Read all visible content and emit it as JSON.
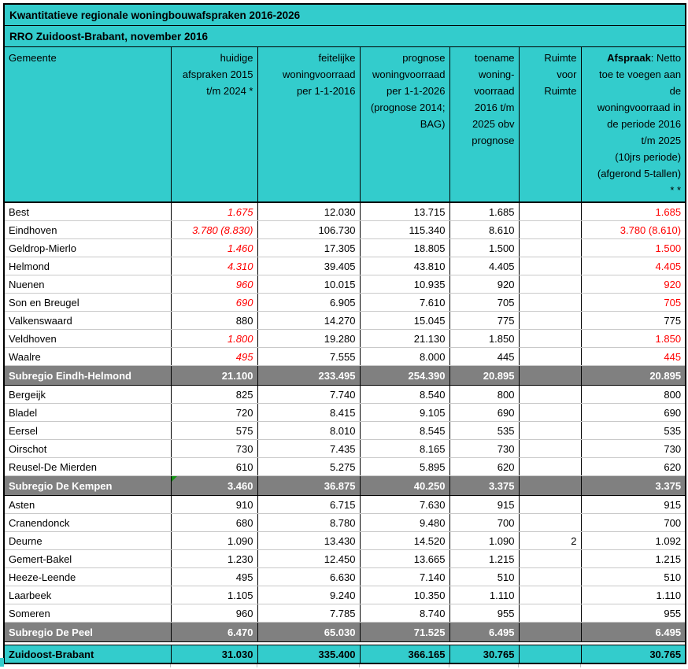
{
  "title": "Kwantitatieve regionale woningbouwafspraken 2016-2026",
  "subtitle": "RRO Zuidoost-Brabant, november 2016",
  "columns": [
    {
      "key": "gemeente",
      "label": "Gemeente",
      "align": "left"
    },
    {
      "key": "huidige-afspraken",
      "label": "huidige\nafspraken 2015\nt/m 2024 *"
    },
    {
      "key": "feitelijke-woningvoorraad",
      "label": "feitelijke\nwoningvoorraad\nper 1-1-2016"
    },
    {
      "key": "prognose-woningvoorraad",
      "label": "prognose\nwoningvoorraad\nper 1-1-2026\n(prognose 2014;\nBAG)"
    },
    {
      "key": "toename-woningvoorraad",
      "label": "toename\nwoning-\nvoorraad\n2016 t/m\n2025 obv\nprognose"
    },
    {
      "key": "ruimte-voor-ruimte",
      "label": "Ruimte\nvoor\nRuimte"
    },
    {
      "key": "afspraak",
      "bold_prefix": "Afspraak",
      "label": ": Netto\ntoe te voegen aan\nde\nwoningvoorraad in\nde periode 2016\nt/m 2025\n(10jrs periode)\n(afgerond 5-tallen)\n* *"
    }
  ],
  "rows": [
    {
      "type": "data",
      "name": "Best",
      "cells": [
        "1.675",
        "12.030",
        "13.715",
        "1.685",
        "",
        "1.685"
      ],
      "styles": [
        "red-italic",
        "",
        "",
        "",
        "",
        "red"
      ]
    },
    {
      "type": "data",
      "name": "Eindhoven",
      "cells": [
        "3.780 (8.830)",
        "106.730",
        "115.340",
        "8.610",
        "",
        "3.780 (8.610)"
      ],
      "styles": [
        "red-italic",
        "",
        "",
        "",
        "",
        "red"
      ]
    },
    {
      "type": "data",
      "name": "Geldrop-Mierlo",
      "cells": [
        "1.460",
        "17.305",
        "18.805",
        "1.500",
        "",
        "1.500"
      ],
      "styles": [
        "red-italic",
        "",
        "",
        "",
        "",
        "red"
      ]
    },
    {
      "type": "data",
      "name": "Helmond",
      "cells": [
        "4.310",
        "39.405",
        "43.810",
        "4.405",
        "",
        "4.405"
      ],
      "styles": [
        "red-italic",
        "",
        "",
        "",
        "",
        "red"
      ]
    },
    {
      "type": "data",
      "name": "Nuenen",
      "cells": [
        "960",
        "10.015",
        "10.935",
        "920",
        "",
        "920"
      ],
      "styles": [
        "red-italic",
        "",
        "",
        "",
        "",
        "red"
      ]
    },
    {
      "type": "data",
      "name": "Son en Breugel",
      "cells": [
        "690",
        "6.905",
        "7.610",
        "705",
        "",
        "705"
      ],
      "styles": [
        "red-italic",
        "",
        "",
        "",
        "",
        "red"
      ]
    },
    {
      "type": "data",
      "name": "Valkenswaard",
      "cells": [
        "880",
        "14.270",
        "15.045",
        "775",
        "",
        "775"
      ],
      "styles": [
        "",
        "",
        "",
        "",
        "",
        ""
      ]
    },
    {
      "type": "data",
      "name": "Veldhoven",
      "cells": [
        "1.800",
        "19.280",
        "21.130",
        "1.850",
        "",
        "1.850"
      ],
      "styles": [
        "red-italic",
        "",
        "",
        "",
        "",
        "red"
      ]
    },
    {
      "type": "data",
      "name": "Waalre",
      "cells": [
        "495",
        "7.555",
        "8.000",
        "445",
        "",
        "445"
      ],
      "styles": [
        "red-italic",
        "",
        "",
        "",
        "",
        "red"
      ]
    },
    {
      "type": "subtotal",
      "name": "Subregio Eindh-Helmond",
      "cells": [
        "21.100",
        "233.495",
        "254.390",
        "20.895",
        "",
        "20.895"
      ]
    },
    {
      "type": "data",
      "name": "Bergeijk",
      "cells": [
        "825",
        "7.740",
        "8.540",
        "800",
        "",
        "800"
      ]
    },
    {
      "type": "data",
      "name": "Bladel",
      "cells": [
        "720",
        "8.415",
        "9.105",
        "690",
        "",
        "690"
      ]
    },
    {
      "type": "data",
      "name": "Eersel",
      "cells": [
        "575",
        "8.010",
        "8.545",
        "535",
        "",
        "535"
      ]
    },
    {
      "type": "data",
      "name": "Oirschot",
      "cells": [
        "730",
        "7.435",
        "8.165",
        "730",
        "",
        "730"
      ]
    },
    {
      "type": "data",
      "name": "Reusel-De Mierden",
      "cells": [
        "610",
        "5.275",
        "5.895",
        "620",
        "",
        "620"
      ]
    },
    {
      "type": "subtotal",
      "name": "Subregio De Kempen",
      "cells": [
        "3.460",
        "36.875",
        "40.250",
        "3.375",
        "",
        "3.375"
      ],
      "error_marker_cell": 0
    },
    {
      "type": "data",
      "name": "Asten",
      "cells": [
        "910",
        "6.715",
        "7.630",
        "915",
        "",
        "915"
      ]
    },
    {
      "type": "data",
      "name": "Cranendonck",
      "cells": [
        "680",
        "8.780",
        "9.480",
        "700",
        "",
        "700"
      ]
    },
    {
      "type": "data",
      "name": "Deurne",
      "cells": [
        "1.090",
        "13.430",
        "14.520",
        "1.090",
        "2",
        "1.092"
      ]
    },
    {
      "type": "data",
      "name": "Gemert-Bakel",
      "cells": [
        "1.230",
        "12.450",
        "13.665",
        "1.215",
        "",
        "1.215"
      ]
    },
    {
      "type": "data",
      "name": "Heeze-Leende",
      "cells": [
        "495",
        "6.630",
        "7.140",
        "510",
        "",
        "510"
      ]
    },
    {
      "type": "data",
      "name": "Laarbeek",
      "cells": [
        "1.105",
        "9.240",
        "10.350",
        "1.110",
        "",
        "1.110"
      ]
    },
    {
      "type": "data",
      "name": "Someren",
      "cells": [
        "960",
        "7.785",
        "8.740",
        "955",
        "",
        "955"
      ]
    },
    {
      "type": "subtotal",
      "name": "Subregio De Peel",
      "cells": [
        "6.470",
        "65.030",
        "71.525",
        "6.495",
        "",
        "6.495"
      ]
    },
    {
      "type": "total",
      "name": "Zuidoost-Brabant",
      "cells": [
        "31.030",
        "335.400",
        "366.165",
        "30.765",
        "",
        "30.765"
      ]
    }
  ],
  "colors": {
    "teal_accent": "#33CCCC",
    "subtotal_gray": "#808080",
    "highlight_red": "#FF0000",
    "row_gridline": "#C9C9C9",
    "border_black": "#000000",
    "error_marker_green": "#149414"
  }
}
